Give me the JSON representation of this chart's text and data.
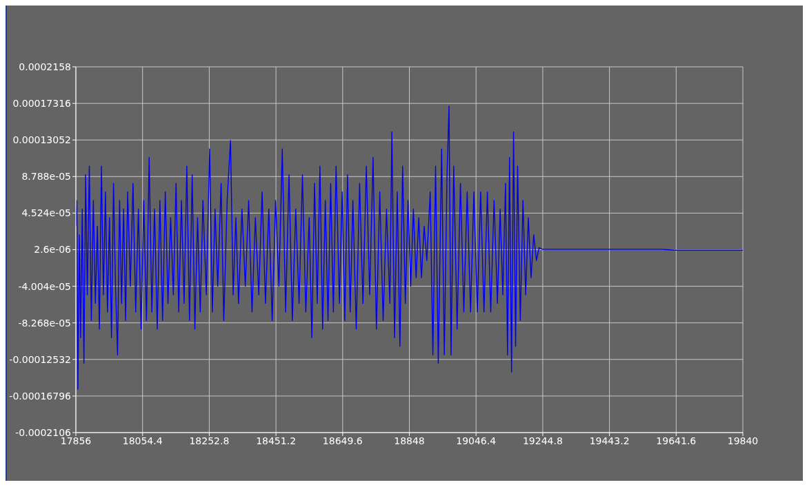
{
  "chart_data": {
    "type": "line",
    "x": [
      17856,
      17859,
      17862,
      17866,
      17870,
      17875,
      17880,
      17885,
      17890,
      17896,
      17902,
      17908,
      17914,
      17920,
      17926,
      17932,
      17938,
      17944,
      17950,
      17956,
      17962,
      17968,
      17974,
      17980,
      17986,
      17992,
      17998,
      18004,
      18010,
      18018,
      18026,
      18034,
      18042,
      18050,
      18058,
      18066,
      18074,
      18082,
      18090,
      18098,
      18106,
      18114,
      18122,
      18130,
      18138,
      18146,
      18154,
      18162,
      18170,
      18178,
      18186,
      18194,
      18202,
      18210,
      18218,
      18226,
      18234,
      18244,
      18254,
      18262,
      18270,
      18278,
      18288,
      18296,
      18306,
      18316,
      18324,
      18332,
      18340,
      18350,
      18360,
      18370,
      18380,
      18390,
      18400,
      18410,
      18420,
      18430,
      18440,
      18450,
      18460,
      18470,
      18480,
      18490,
      18500,
      18510,
      18520,
      18530,
      18540,
      18550,
      18558,
      18566,
      18574,
      18582,
      18590,
      18598,
      18606,
      18614,
      18622,
      18630,
      18640,
      18648,
      18656,
      18664,
      18672,
      18680,
      18690,
      18700,
      18710,
      18720,
      18730,
      18740,
      18750,
      18760,
      18770,
      18780,
      18790,
      18796,
      18804,
      18812,
      18820,
      18828,
      18836,
      18844,
      18852,
      18860,
      18868,
      18876,
      18884,
      18892,
      18900,
      18910,
      18918,
      18926,
      18934,
      18944,
      18952,
      18960,
      18966,
      18972,
      18980,
      18990,
      19000,
      19010,
      19020,
      19030,
      19040,
      19050,
      19060,
      19070,
      19080,
      19090,
      19100,
      19110,
      19118,
      19126,
      19134,
      19140,
      19146,
      19152,
      19158,
      19164,
      19170,
      19178,
      19186,
      19194,
      19202,
      19210,
      19218,
      19226,
      19234,
      19244,
      19440,
      19600,
      19640,
      19840
    ],
    "series": [
      {
        "color": "#0000ee",
        "values": [
          3e-05,
          6e-05,
          -0.00016,
          2e-05,
          -0.0001,
          5e-05,
          -0.00013,
          9e-05,
          -5e-05,
          0.0001,
          -8e-05,
          6e-05,
          -6e-05,
          3e-05,
          -9e-05,
          0.0001,
          -5e-05,
          7e-05,
          -7e-05,
          4e-05,
          -0.0001,
          8e-05,
          -4e-05,
          -0.00012,
          6e-05,
          -6e-05,
          5e-05,
          -8e-05,
          7e-05,
          -4e-05,
          8e-05,
          -7e-05,
          5e-05,
          -9e-05,
          6e-05,
          -8e-05,
          0.00011,
          -7e-05,
          5e-05,
          -9e-05,
          6e-05,
          -8e-05,
          7e-05,
          -6e-05,
          4e-05,
          -5e-05,
          8e-05,
          -7e-05,
          6e-05,
          -6e-05,
          0.0001,
          -8e-05,
          9e-05,
          -9e-05,
          4e-05,
          -7e-05,
          6e-05,
          -5e-05,
          0.00012,
          -7e-05,
          5e-05,
          -4e-05,
          8e-05,
          -8e-05,
          6e-05,
          0.00013,
          -5e-05,
          4e-05,
          -6e-05,
          5e-05,
          -4e-05,
          6e-05,
          -7e-05,
          4e-05,
          -5e-05,
          7e-05,
          -6e-05,
          5e-05,
          -8e-05,
          6e-05,
          -4e-05,
          0.00012,
          -7e-05,
          9e-05,
          -8e-05,
          5e-05,
          -6e-05,
          9e-05,
          -7e-05,
          4e-05,
          -0.0001,
          8e-05,
          -6e-05,
          0.0001,
          -9e-05,
          6e-05,
          -8e-05,
          8e-05,
          -7e-05,
          0.0001,
          -6e-05,
          7e-05,
          -8e-05,
          9e-05,
          -7e-05,
          6e-05,
          -9e-05,
          8e-05,
          -6e-05,
          0.0001,
          -5e-05,
          0.00011,
          -9e-05,
          7e-05,
          -8e-05,
          5e-05,
          -6e-05,
          0.00014,
          -0.0001,
          7e-05,
          -0.00011,
          0.0001,
          -6e-05,
          6e-05,
          -4e-05,
          5e-05,
          -3e-05,
          4e-05,
          -3e-05,
          3e-05,
          -1e-05,
          7e-05,
          -0.00012,
          0.0001,
          -0.00013,
          0.00012,
          -0.00012,
          9e-05,
          0.00017,
          -0.00012,
          0.0001,
          -9e-05,
          8e-05,
          -7e-05,
          7e-05,
          -7e-05,
          7e-05,
          -7e-05,
          7e-05,
          -7e-05,
          7e-05,
          -7e-05,
          6e-05,
          -6e-05,
          5e-05,
          -5e-05,
          8e-05,
          -0.00012,
          0.00011,
          -0.00014,
          0.00014,
          -0.00011,
          0.0001,
          -8e-05,
          6e-05,
          -5e-05,
          4e-05,
          -3e-05,
          2e-05,
          -1e-05,
          5e-06,
          3e-06,
          3e-06,
          3e-06,
          2e-06,
          2e-06
        ]
      }
    ],
    "xlim": [
      17856,
      19840
    ],
    "xticks": [
      17856,
      18054.4,
      18252.8,
      18451.2,
      18649.6,
      18848,
      19046.4,
      19244.8,
      19443.2,
      19641.6,
      19840
    ],
    "ylim": [
      -0.0002106,
      0.0002158
    ],
    "yticks": [
      {
        "value": -0.0002106,
        "label": "-0.0002106"
      },
      {
        "value": -0.00016796,
        "label": "-0.00016796"
      },
      {
        "value": -0.00012532,
        "label": "-0.00012532"
      },
      {
        "value": -8.268e-05,
        "label": "-8.268e-05"
      },
      {
        "value": -4.004e-05,
        "label": "-4.004e-05"
      },
      {
        "value": 2.6e-06,
        "label": "2.6e-06"
      },
      {
        "value": 4.524e-05,
        "label": "4.524e-05"
      },
      {
        "value": 8.788e-05,
        "label": "8.788e-05"
      },
      {
        "value": 0.00013052,
        "label": "0.00013052"
      },
      {
        "value": 0.00017316,
        "label": "0.00017316"
      },
      {
        "value": 0.0002158,
        "label": "0.0002158"
      }
    ],
    "grid": true
  }
}
